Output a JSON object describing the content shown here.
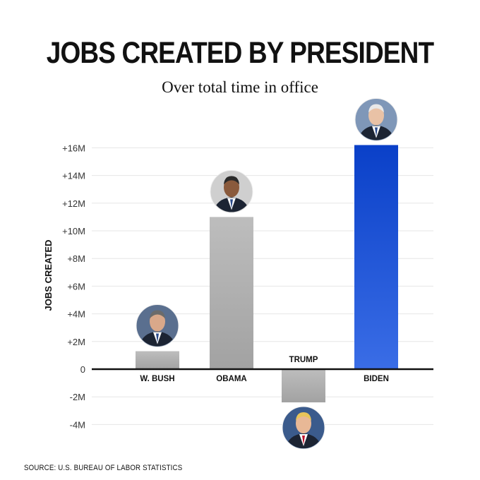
{
  "chart_data": {
    "type": "bar",
    "title": "JOBS CREATED BY PRESIDENT",
    "subtitle": "Over total time in office",
    "ylabel": "JOBS CREATED",
    "xlabel": "",
    "categories": [
      "W. BUSH",
      "OBAMA",
      "TRUMP",
      "BIDEN"
    ],
    "values": [
      1.3,
      11.0,
      -2.4,
      16.2
    ],
    "unit": "M",
    "ylim": [
      -4,
      16
    ],
    "yticks": [
      "+16M",
      "+14M",
      "+12M",
      "+10M",
      "+8M",
      "+6M",
      "+4M",
      "+2M",
      "0",
      "-2M",
      "-4M"
    ],
    "ytick_values": [
      16,
      14,
      12,
      10,
      8,
      6,
      4,
      2,
      0,
      -2,
      -4
    ],
    "grid": true,
    "colors": {
      "default_bar": "#b0b0b0",
      "highlight_bar": "#1f55d6",
      "axis": "#111111",
      "grid": "#e6e6e6"
    },
    "highlight": "BIDEN",
    "portraits": [
      "bush-portrait-icon",
      "obama-portrait-icon",
      "trump-portrait-icon",
      "biden-portrait-icon"
    ]
  },
  "source": "SOURCE: U.S. BUREAU OF LABOR STATISTICS"
}
